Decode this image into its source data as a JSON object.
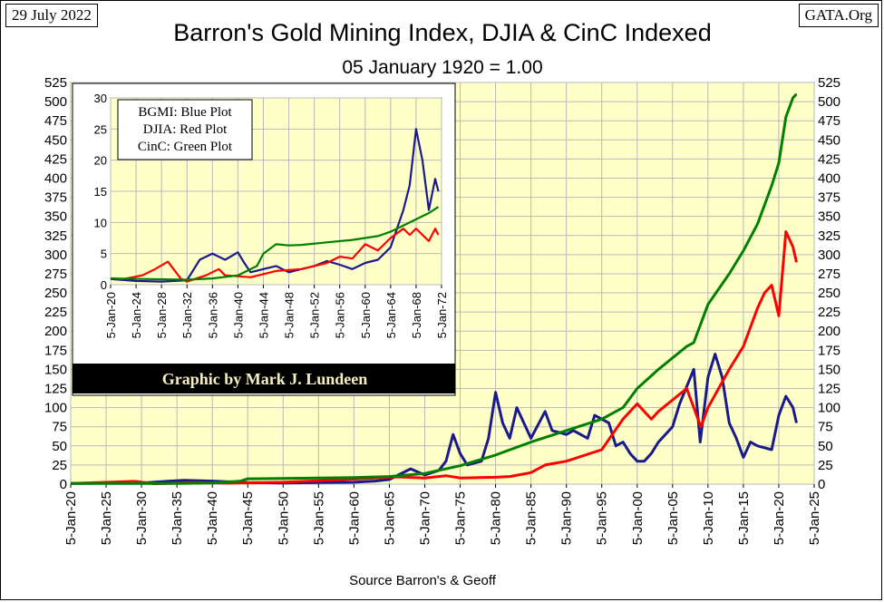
{
  "header": {
    "date_stamp": "29 July 2022",
    "source_stamp": "GATA.Org",
    "title": "Barron's Gold Mining Index, DJIA & CinC Indexed",
    "subtitle": "05 January 1920 = 1.00"
  },
  "footer": {
    "source": "Source Barron's & Geoff"
  },
  "credit": "Graphic by Mark J. Lundeen",
  "legend": [
    "BGMI: Blue Plot",
    "DJIA: Red Plot",
    "CinC: Green Plot"
  ],
  "colors": {
    "plot_bg": "#ffffc8",
    "grid": "#b9b9b9",
    "bgmi": "#1a1a8c",
    "djia": "#ff0000",
    "cinc": "#008000",
    "credit_bg": "#000000"
  },
  "chart_data": [
    {
      "type": "line",
      "title": "Barron's Gold Mining Index, DJIA & CinC Indexed",
      "subtitle": "05 January 1920 = 1.00",
      "xlabel": "",
      "ylabel": "",
      "xlim": [
        1920,
        2025
      ],
      "ylim": [
        0,
        525
      ],
      "x_ticks": [
        "5-Jan-20",
        "5-Jan-25",
        "5-Jan-30",
        "5-Jan-35",
        "5-Jan-40",
        "5-Jan-45",
        "5-Jan-50",
        "5-Jan-55",
        "5-Jan-60",
        "5-Jan-65",
        "5-Jan-70",
        "5-Jan-75",
        "5-Jan-80",
        "5-Jan-85",
        "5-Jan-90",
        "5-Jan-95",
        "5-Jan-00",
        "5-Jan-05",
        "5-Jan-10",
        "5-Jan-15",
        "5-Jan-20",
        "5-Jan-25"
      ],
      "y_ticks": [
        0,
        25,
        50,
        75,
        100,
        125,
        150,
        175,
        200,
        225,
        250,
        275,
        300,
        325,
        350,
        375,
        400,
        425,
        450,
        475,
        500,
        525
      ],
      "grid": true,
      "series": [
        {
          "name": "BGMI",
          "points": [
            [
              1920,
              1
            ],
            [
              1930,
              1.5
            ],
            [
              1934,
              4
            ],
            [
              1936,
              5
            ],
            [
              1940,
              4
            ],
            [
              1945,
              2
            ],
            [
              1950,
              1.5
            ],
            [
              1955,
              2
            ],
            [
              1960,
              2.5
            ],
            [
              1963,
              4
            ],
            [
              1965,
              6
            ],
            [
              1968,
              20
            ],
            [
              1970,
              12
            ],
            [
              1972,
              18
            ],
            [
              1973,
              30
            ],
            [
              1974,
              65
            ],
            [
              1975,
              40
            ],
            [
              1976,
              25
            ],
            [
              1978,
              30
            ],
            [
              1979,
              60
            ],
            [
              1980,
              120
            ],
            [
              1981,
              80
            ],
            [
              1982,
              60
            ],
            [
              1983,
              100
            ],
            [
              1984,
              80
            ],
            [
              1985,
              60
            ],
            [
              1987,
              95
            ],
            [
              1988,
              70
            ],
            [
              1990,
              65
            ],
            [
              1991,
              70
            ],
            [
              1993,
              60
            ],
            [
              1994,
              90
            ],
            [
              1996,
              80
            ],
            [
              1997,
              50
            ],
            [
              1998,
              55
            ],
            [
              1999,
              40
            ],
            [
              2000,
              30
            ],
            [
              2001,
              30
            ],
            [
              2002,
              40
            ],
            [
              2003,
              55
            ],
            [
              2005,
              75
            ],
            [
              2006,
              105
            ],
            [
              2008,
              150
            ],
            [
              2008.9,
              55
            ],
            [
              2010,
              140
            ],
            [
              2011,
              170
            ],
            [
              2012,
              140
            ],
            [
              2013,
              80
            ],
            [
              2014,
              60
            ],
            [
              2015,
              35
            ],
            [
              2016,
              55
            ],
            [
              2017,
              50
            ],
            [
              2019,
              45
            ],
            [
              2020,
              90
            ],
            [
              2021,
              115
            ],
            [
              2022,
              100
            ],
            [
              2022.5,
              80
            ]
          ]
        },
        {
          "name": "DJIA",
          "points": [
            [
              1920,
              1
            ],
            [
              1929,
              3.7
            ],
            [
              1932,
              0.5
            ],
            [
              1937,
              2
            ],
            [
              1942,
              1.3
            ],
            [
              1950,
              2.5
            ],
            [
              1955,
              4.5
            ],
            [
              1960,
              6.5
            ],
            [
              1966,
              9.5
            ],
            [
              1970,
              8
            ],
            [
              1973,
              11
            ],
            [
              1975,
              8
            ],
            [
              1980,
              9
            ],
            [
              1982,
              10
            ],
            [
              1985,
              15
            ],
            [
              1987,
              25
            ],
            [
              1990,
              30
            ],
            [
              1995,
              45
            ],
            [
              1998,
              85
            ],
            [
              2000,
              105
            ],
            [
              2002,
              85
            ],
            [
              2003,
              95
            ],
            [
              2007,
              125
            ],
            [
              2009,
              75
            ],
            [
              2010,
              100
            ],
            [
              2013,
              150
            ],
            [
              2015,
              180
            ],
            [
              2017,
              230
            ],
            [
              2018,
              250
            ],
            [
              2019,
              260
            ],
            [
              2020,
              220
            ],
            [
              2021,
              330
            ],
            [
              2022,
              310
            ],
            [
              2022.5,
              290
            ]
          ]
        },
        {
          "name": "CinC",
          "points": [
            [
              1920,
              1
            ],
            [
              1930,
              0.8
            ],
            [
              1935,
              1
            ],
            [
              1940,
              1.5
            ],
            [
              1944,
              4
            ],
            [
              1945,
              7
            ],
            [
              1950,
              7.5
            ],
            [
              1955,
              8
            ],
            [
              1960,
              8.5
            ],
            [
              1965,
              10
            ],
            [
              1970,
              14
            ],
            [
              1975,
              24
            ],
            [
              1980,
              38
            ],
            [
              1985,
              55
            ],
            [
              1990,
              70
            ],
            [
              1995,
              85
            ],
            [
              1998,
              100
            ],
            [
              2000,
              125
            ],
            [
              2003,
              150
            ],
            [
              2007,
              180
            ],
            [
              2008,
              185
            ],
            [
              2010,
              235
            ],
            [
              2013,
              275
            ],
            [
              2015,
              305
            ],
            [
              2017,
              340
            ],
            [
              2019,
              390
            ],
            [
              2020,
              420
            ],
            [
              2021,
              480
            ],
            [
              2022,
              505
            ],
            [
              2022.5,
              510
            ]
          ]
        }
      ]
    },
    {
      "type": "line",
      "title": "",
      "xlim": [
        1920,
        1972
      ],
      "ylim": [
        0,
        30
      ],
      "x_ticks": [
        "5-Jan-20",
        "5-Jan-24",
        "5-Jan-28",
        "5-Jan-32",
        "5-Jan-36",
        "5-Jan-40",
        "5-Jan-44",
        "5-Jan-48",
        "5-Jan-52",
        "5-Jan-56",
        "5-Jan-60",
        "5-Jan-64",
        "5-Jan-68",
        "5-Jan-72"
      ],
      "y_ticks": [
        0,
        5,
        10,
        15,
        20,
        25,
        30
      ],
      "grid": true,
      "series": [
        {
          "name": "BGMI",
          "points": [
            [
              1920,
              0.9
            ],
            [
              1924,
              0.6
            ],
            [
              1928,
              0.5
            ],
            [
              1932,
              0.7
            ],
            [
              1934,
              4
            ],
            [
              1936,
              5
            ],
            [
              1938,
              4
            ],
            [
              1940,
              5.2
            ],
            [
              1941,
              3.5
            ],
            [
              1942,
              2
            ],
            [
              1944,
              2.5
            ],
            [
              1946,
              3
            ],
            [
              1948,
              2
            ],
            [
              1950,
              2.5
            ],
            [
              1952,
              3
            ],
            [
              1954,
              3.8
            ],
            [
              1956,
              3.2
            ],
            [
              1958,
              2.5
            ],
            [
              1960,
              3.5
            ],
            [
              1962,
              4
            ],
            [
              1964,
              6
            ],
            [
              1966,
              12
            ],
            [
              1967,
              16
            ],
            [
              1968,
              25
            ],
            [
              1969,
              20
            ],
            [
              1970,
              12
            ],
            [
              1971,
              17
            ],
            [
              1971.5,
              15
            ]
          ]
        },
        {
          "name": "DJIA",
          "points": [
            [
              1920,
              1
            ],
            [
              1922,
              0.9
            ],
            [
              1925,
              1.5
            ],
            [
              1927,
              2.5
            ],
            [
              1929,
              3.7
            ],
            [
              1931,
              1
            ],
            [
              1932,
              0.5
            ],
            [
              1935,
              1.5
            ],
            [
              1937,
              2.5
            ],
            [
              1938,
              1.5
            ],
            [
              1942,
              1.2
            ],
            [
              1946,
              2.2
            ],
            [
              1950,
              2.5
            ],
            [
              1954,
              3.5
            ],
            [
              1956,
              4.5
            ],
            [
              1958,
              4.2
            ],
            [
              1960,
              6.5
            ],
            [
              1962,
              5.5
            ],
            [
              1964,
              7.5
            ],
            [
              1966,
              9
            ],
            [
              1967,
              8
            ],
            [
              1968,
              9
            ],
            [
              1970,
              7
            ],
            [
              1971,
              9
            ],
            [
              1971.5,
              8
            ]
          ]
        },
        {
          "name": "CinC",
          "points": [
            [
              1920,
              1
            ],
            [
              1926,
              0.9
            ],
            [
              1932,
              0.8
            ],
            [
              1936,
              1
            ],
            [
              1940,
              1.5
            ],
            [
              1943,
              3
            ],
            [
              1944,
              5
            ],
            [
              1946,
              6.5
            ],
            [
              1948,
              6.3
            ],
            [
              1950,
              6.4
            ],
            [
              1954,
              6.8
            ],
            [
              1958,
              7.2
            ],
            [
              1962,
              7.8
            ],
            [
              1964,
              8.5
            ],
            [
              1966,
              9.5
            ],
            [
              1968,
              10.5
            ],
            [
              1970,
              11.5
            ],
            [
              1971.5,
              12.5
            ]
          ]
        }
      ]
    }
  ]
}
